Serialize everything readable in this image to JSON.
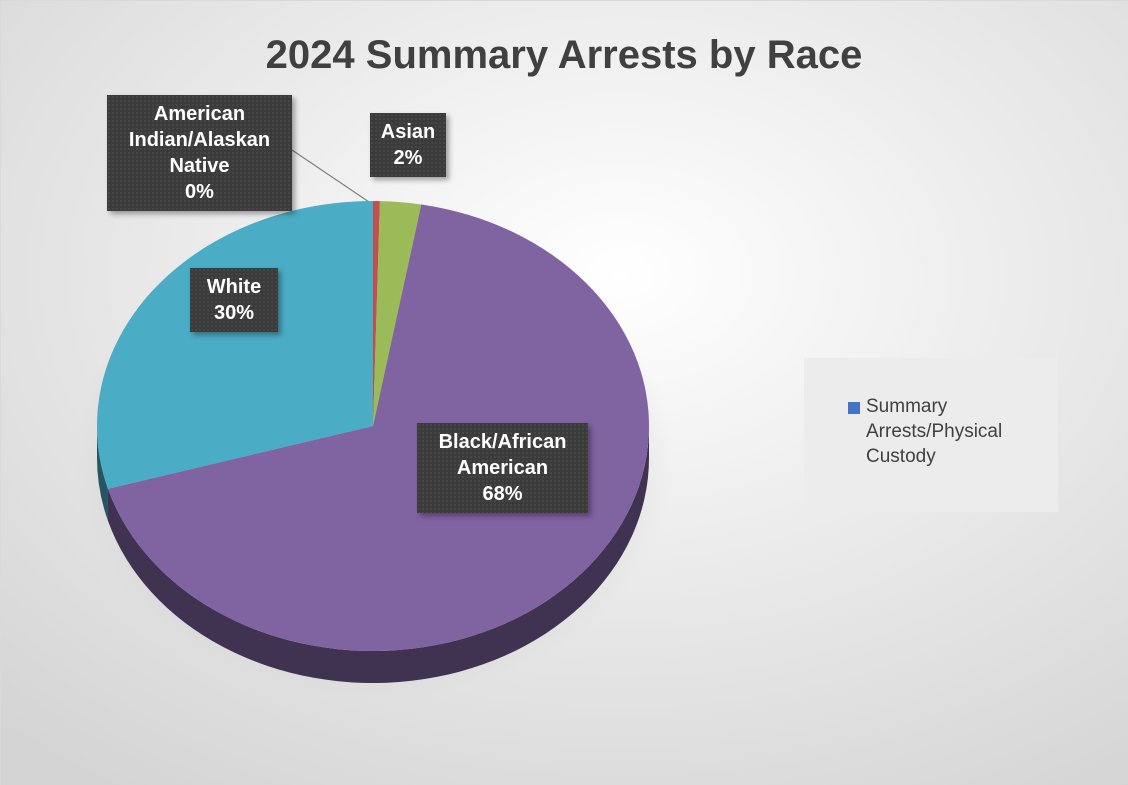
{
  "chart_data": {
    "type": "pie",
    "title": "2024 Summary Arrests by Race",
    "categories": [
      "American Indian/Alaskan Native",
      "Asian",
      "Black/African American",
      "White"
    ],
    "colors": [
      "#c0504d",
      "#9bbb59",
      "#8064a2",
      "#4bacc6"
    ],
    "series": [
      {
        "name": "Summary Arrests/Physical Custody",
        "color": "#4472c4",
        "values": [
          0.4,
          2.4,
          67.7,
          29.5
        ],
        "value_labels": [
          "0%",
          "2%",
          "68%",
          "30%"
        ]
      }
    ]
  }
}
